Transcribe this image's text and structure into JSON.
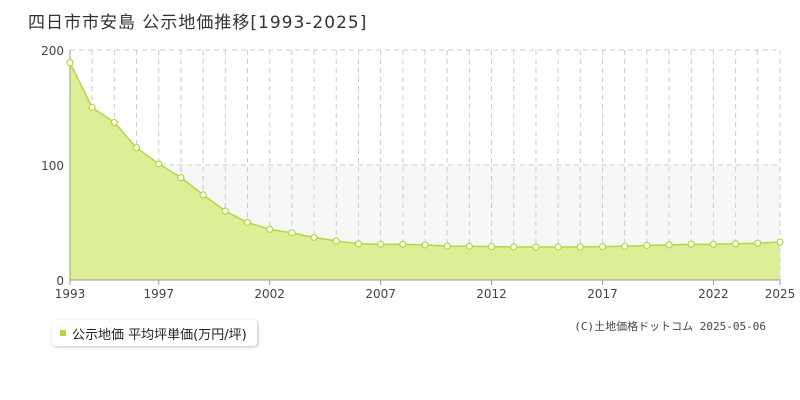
{
  "title": "四日市市安島 公示地価推移[1993-2025]",
  "legend": {
    "label": "公示地価 平均坪単価(万円/坪)"
  },
  "copyright": "(C)土地価格ドットコム 2025-05-06",
  "colors": {
    "fill": "#dcee96",
    "line": "#b5d83a",
    "marker_fill": "#ffffff",
    "grid": "#cccccc",
    "band": "#f7f7f7"
  },
  "chart_data": {
    "type": "area",
    "title": "四日市市安島 公示地価推移[1993-2025]",
    "xlabel": "",
    "ylabel": "",
    "ylim": [
      0,
      200
    ],
    "yticks": [
      "0",
      "100",
      "200"
    ],
    "xtick_labels": [
      "1993",
      "1997",
      "2002",
      "2007",
      "2012",
      "2017",
      "2022",
      "2025"
    ],
    "grid": true,
    "legend_position": "bottom-left",
    "series": [
      {
        "name": "公示地価 平均坪単価(万円/坪)",
        "x": [
          1993,
          1994,
          1995,
          1996,
          1997,
          1998,
          1999,
          2000,
          2001,
          2002,
          2003,
          2004,
          2005,
          2006,
          2007,
          2008,
          2009,
          2010,
          2011,
          2012,
          2013,
          2014,
          2015,
          2016,
          2017,
          2018,
          2019,
          2020,
          2021,
          2022,
          2023,
          2024,
          2025
        ],
        "values": [
          189,
          150,
          137,
          115,
          101,
          89,
          74,
          60,
          50,
          44,
          41,
          37,
          34,
          31.5,
          31,
          31,
          30.5,
          29.5,
          29.3,
          29,
          28.7,
          28.7,
          28.7,
          28.8,
          29,
          29.3,
          30,
          30.5,
          31,
          31,
          31.5,
          32,
          33
        ]
      }
    ]
  }
}
